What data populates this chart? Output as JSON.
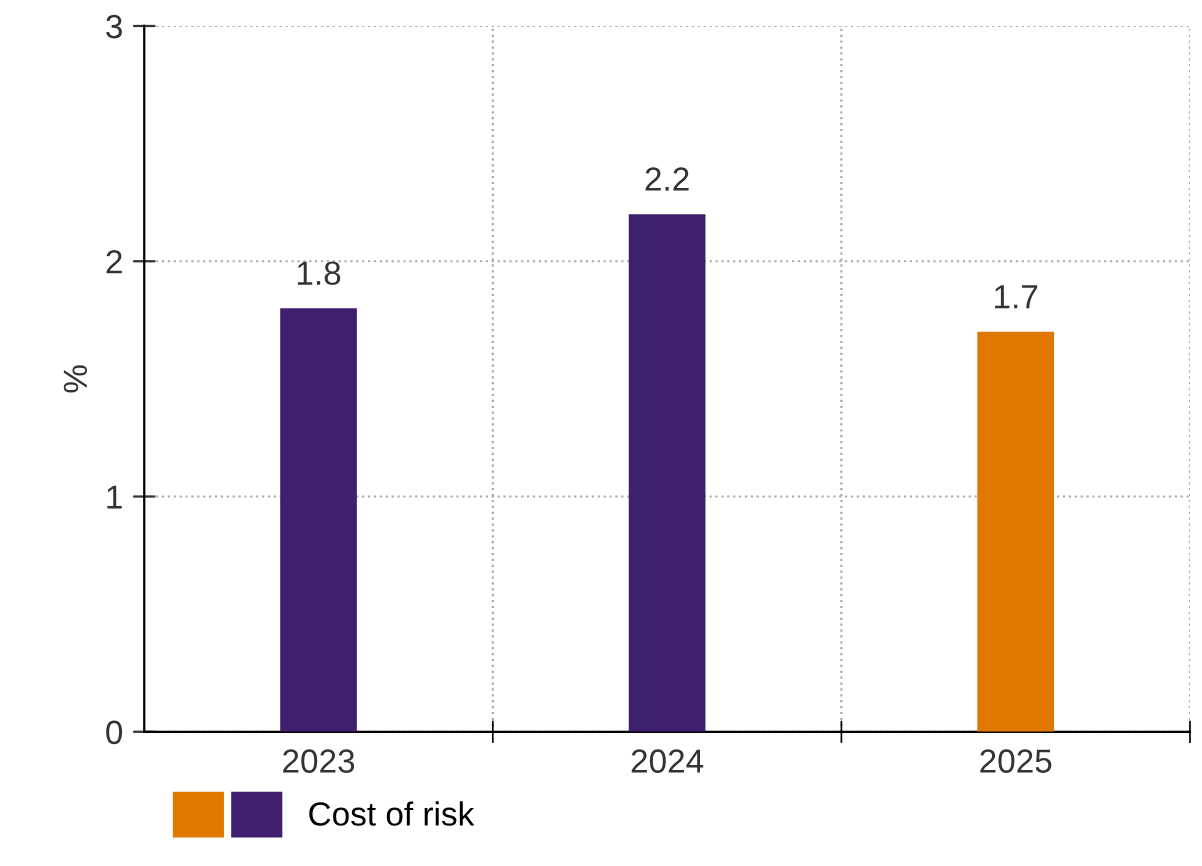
{
  "chart_data": {
    "type": "bar",
    "ylabel": "%",
    "categories": [
      "2023",
      "2024",
      "2025"
    ],
    "series": [
      {
        "name": "Cost of risk",
        "values": [
          1.8,
          2.2,
          1.7
        ],
        "colors": [
          "#3f206e",
          "#3f206e",
          "#e07800"
        ]
      }
    ],
    "ylim": [
      0,
      3
    ],
    "yticks": [
      0,
      1,
      2,
      3
    ],
    "grid": true,
    "legend": "bottom left",
    "data_labels": true
  }
}
